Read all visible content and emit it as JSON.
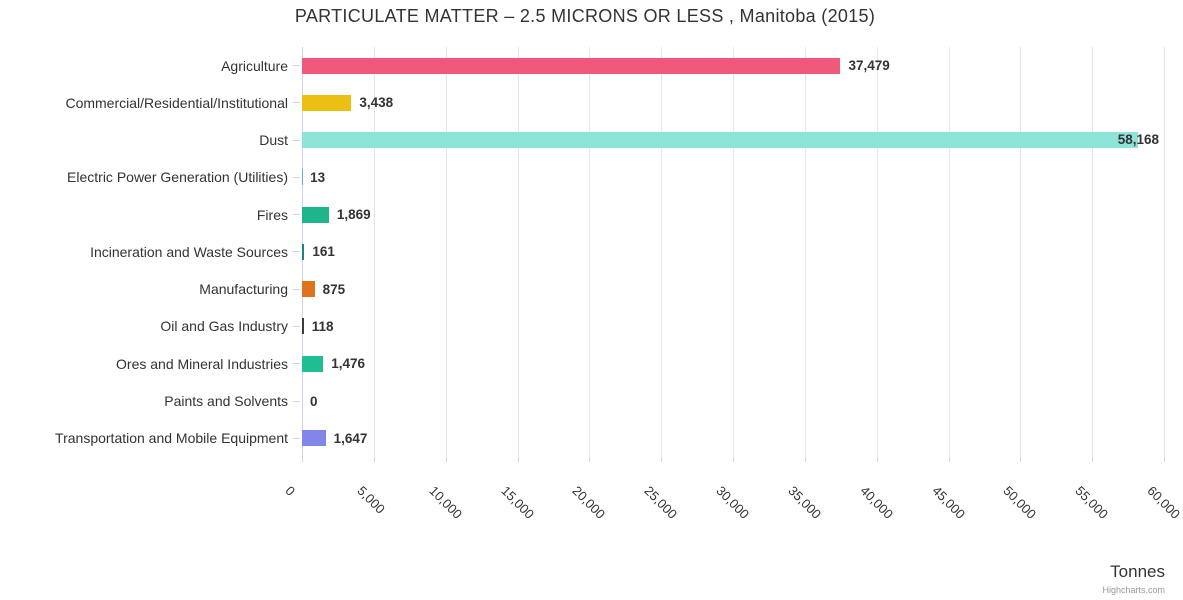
{
  "title": "PARTICULATE MATTER – 2.5 MICRONS OR LESS , Manitoba (2015)",
  "credit": "Highcharts.com",
  "chart_data": {
    "type": "bar",
    "orientation": "horizontal",
    "title": "PARTICULATE MATTER – 2.5 MICRONS OR LESS , Manitoba (2015)",
    "categories": [
      "Agriculture",
      "Commercial/Residential/Institutional",
      "Dust",
      "Electric Power Generation (Utilities)",
      "Fires",
      "Incineration and Waste Sources",
      "Manufacturing",
      "Oil and Gas Industry",
      "Ores and Mineral Industries",
      "Paints and Solvents",
      "Transportation and Mobile Equipment"
    ],
    "values": [
      37479,
      3438,
      58168,
      13,
      1869,
      161,
      875,
      118,
      1476,
      0,
      1647
    ],
    "value_labels": [
      "37,479",
      "3,438",
      "58,168",
      "13",
      "1,869",
      "161",
      "875",
      "118",
      "1,476",
      "0",
      "1,647"
    ],
    "bar_colors": [
      "#F0597C",
      "#EBC013",
      "#8FE4D9",
      "#6BA3D6",
      "#1FB58C",
      "#1D8087",
      "#E0711D",
      "#3B3B3B",
      "#1EBD92",
      "#9E9E9E",
      "#8186E7"
    ],
    "xlabel": "Tonnes",
    "ylabel": "",
    "xlim": [
      0,
      60000
    ],
    "tick_interval": 5000,
    "x_tick_labels": [
      "0",
      "5,000",
      "10,000",
      "15,000",
      "20,000",
      "25,000",
      "30,000",
      "35,000",
      "40,000",
      "45,000",
      "50,000",
      "55,000",
      "60,000"
    ],
    "grid": true,
    "legend": "none",
    "colors": {
      "grid_line": "#e6e6e6",
      "axis_line": "#ccd6eb",
      "text": "#333333",
      "credit_text": "#999999",
      "background": "#ffffff"
    }
  }
}
